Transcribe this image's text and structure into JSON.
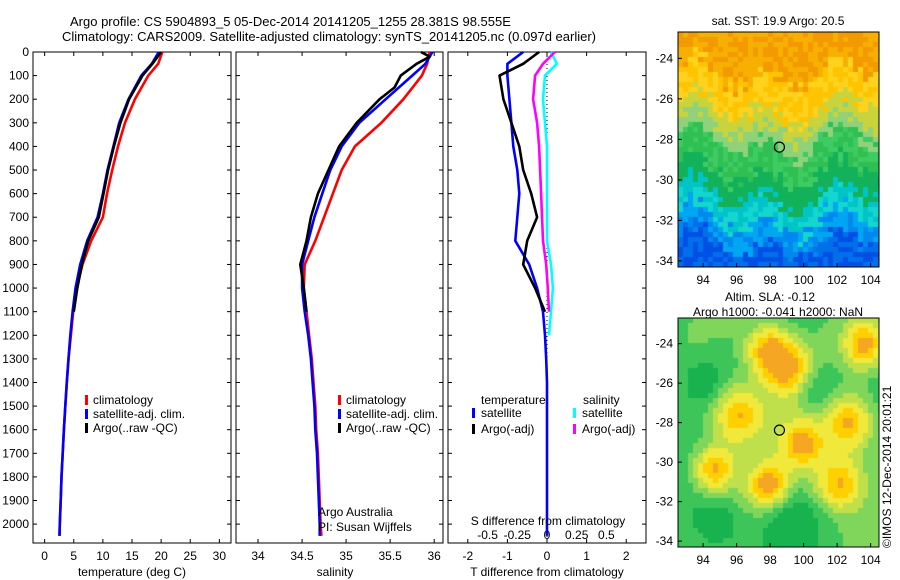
{
  "title": {
    "line1": "Argo profile: CS 5904893_5 05-Dec-2014 20141205_1255 28.381S 98.555E",
    "line2": "Climatology: CARS2009. Satellite-adjusted climatology: synTS_20141205.nc (0.097d earlier)"
  },
  "colors": {
    "climatology": "#ff0000",
    "satellite": "#0000ff",
    "argo": "#000000",
    "salinity_satellite": "#00ffff",
    "salinity_argo": "#ff00ff"
  },
  "credit": "©IMOS 12-Dec-2014 20:01:21",
  "chart_data": [
    {
      "type": "line",
      "id": "temperature",
      "xlabel": "temperature (deg C)",
      "xlim": [
        -2,
        32
      ],
      "ylim": [
        2080,
        0
      ],
      "y_reversed": true,
      "xticks": [
        0,
        5,
        10,
        15,
        20,
        25,
        30
      ],
      "yticks": [
        0,
        100,
        200,
        300,
        400,
        500,
        600,
        700,
        800,
        900,
        1000,
        1100,
        1200,
        1300,
        1400,
        1500,
        1600,
        1700,
        1800,
        1900,
        2000
      ],
      "legend": {
        "position": "lower-center",
        "labels": [
          "climatology",
          "satellite-adj. clim.",
          "Argo(..raw -QC)"
        ]
      },
      "series": [
        {
          "name": "climatology",
          "color": "#ff0000",
          "points": [
            [
              20.2,
              0
            ],
            [
              19.5,
              50
            ],
            [
              17.8,
              100
            ],
            [
              15.5,
              200
            ],
            [
              13.8,
              300
            ],
            [
              12.6,
              400
            ],
            [
              11.6,
              500
            ],
            [
              10.7,
              600
            ],
            [
              10.0,
              700
            ],
            [
              8.0,
              800
            ],
            [
              6.5,
              900
            ],
            [
              5.5,
              1000
            ],
            [
              4.9,
              1100
            ],
            [
              4.5,
              1200
            ],
            [
              4.1,
              1300
            ],
            [
              3.8,
              1400
            ],
            [
              3.55,
              1500
            ],
            [
              3.3,
              1600
            ],
            [
              3.1,
              1700
            ],
            [
              2.9,
              1800
            ],
            [
              2.75,
              1900
            ],
            [
              2.6,
              2000
            ],
            [
              2.55,
              2050
            ]
          ]
        },
        {
          "name": "satellite-adj. clim.",
          "color": "#0000ff",
          "points": [
            [
              19.6,
              0
            ],
            [
              18.4,
              50
            ],
            [
              16.6,
              100
            ],
            [
              14.4,
              200
            ],
            [
              12.8,
              300
            ],
            [
              11.8,
              400
            ],
            [
              10.8,
              500
            ],
            [
              10.0,
              600
            ],
            [
              9.1,
              700
            ],
            [
              7.3,
              800
            ],
            [
              6.1,
              900
            ],
            [
              5.3,
              1000
            ],
            [
              4.8,
              1100
            ],
            [
              4.4,
              1200
            ],
            [
              4.1,
              1300
            ],
            [
              3.8,
              1400
            ],
            [
              3.55,
              1500
            ],
            [
              3.3,
              1600
            ],
            [
              3.1,
              1700
            ],
            [
              2.9,
              1800
            ],
            [
              2.75,
              1900
            ],
            [
              2.6,
              2000
            ],
            [
              2.55,
              2050
            ]
          ]
        },
        {
          "name": "Argo(..raw -QC)",
          "color": "#000000",
          "points": [
            [
              20.0,
              0
            ],
            [
              18.5,
              50
            ],
            [
              16.8,
              100
            ],
            [
              14.5,
              200
            ],
            [
              13.0,
              300
            ],
            [
              11.9,
              400
            ],
            [
              10.9,
              500
            ],
            [
              10.1,
              600
            ],
            [
              9.3,
              700
            ],
            [
              7.5,
              800
            ],
            [
              6.4,
              900
            ],
            [
              5.6,
              1000
            ],
            [
              5.0,
              1100
            ]
          ]
        }
      ]
    },
    {
      "type": "line",
      "id": "salinity",
      "xlabel": "salinity",
      "xlim": [
        33.75,
        36.1
      ],
      "ylim": [
        2080,
        0
      ],
      "y_reversed": true,
      "xticks": [
        34,
        34.5,
        35,
        35.5,
        36
      ],
      "legend": {
        "position": "lower-center",
        "labels": [
          "climatology",
          "satellite-adj. clim.",
          "Argo(..raw -QC)"
        ]
      },
      "annotation": [
        "Argo Australia",
        "PI: Susan Wijffels"
      ],
      "series": [
        {
          "name": "climatology",
          "color": "#ff0000",
          "points": [
            [
              35.95,
              0
            ],
            [
              35.92,
              50
            ],
            [
              35.86,
              100
            ],
            [
              35.65,
              200
            ],
            [
              35.4,
              300
            ],
            [
              35.1,
              400
            ],
            [
              34.95,
              500
            ],
            [
              34.85,
              600
            ],
            [
              34.75,
              700
            ],
            [
              34.65,
              800
            ],
            [
              34.53,
              900
            ],
            [
              34.52,
              1000
            ],
            [
              34.55,
              1100
            ],
            [
              34.58,
              1200
            ],
            [
              34.61,
              1300
            ],
            [
              34.63,
              1400
            ],
            [
              34.65,
              1500
            ],
            [
              34.66,
              1600
            ],
            [
              34.68,
              1700
            ],
            [
              34.69,
              1800
            ],
            [
              34.7,
              1900
            ],
            [
              34.71,
              2000
            ],
            [
              34.72,
              2050
            ]
          ]
        },
        {
          "name": "satellite-adj. clim.",
          "color": "#0000ff",
          "points": [
            [
              35.98,
              0
            ],
            [
              35.9,
              50
            ],
            [
              35.75,
              100
            ],
            [
              35.45,
              200
            ],
            [
              35.15,
              300
            ],
            [
              34.95,
              400
            ],
            [
              34.82,
              500
            ],
            [
              34.73,
              600
            ],
            [
              34.64,
              700
            ],
            [
              34.57,
              800
            ],
            [
              34.5,
              900
            ],
            [
              34.5,
              1000
            ],
            [
              34.53,
              1100
            ],
            [
              34.57,
              1200
            ],
            [
              34.6,
              1300
            ],
            [
              34.62,
              1400
            ],
            [
              34.64,
              1500
            ],
            [
              34.65,
              1600
            ],
            [
              34.67,
              1700
            ],
            [
              34.68,
              1800
            ],
            [
              34.69,
              1900
            ],
            [
              34.7,
              2000
            ],
            [
              34.7,
              2050
            ]
          ]
        },
        {
          "name": "Argo(..raw -QC)",
          "color": "#000000",
          "points": [
            [
              35.85,
              0
            ],
            [
              35.95,
              20
            ],
            [
              35.8,
              50
            ],
            [
              35.62,
              100
            ],
            [
              35.55,
              150
            ],
            [
              35.38,
              200
            ],
            [
              35.12,
              300
            ],
            [
              34.92,
              400
            ],
            [
              34.8,
              500
            ],
            [
              34.68,
              600
            ],
            [
              34.6,
              700
            ],
            [
              34.55,
              800
            ],
            [
              34.48,
              900
            ],
            [
              34.52,
              1000
            ],
            [
              34.55,
              1100
            ]
          ]
        }
      ]
    },
    {
      "type": "line",
      "id": "difference",
      "xlabel": "T difference from climatology",
      "xlabel_top": "S difference from climatology",
      "xlim": [
        -2.5,
        2.5
      ],
      "ylim": [
        2080,
        0
      ],
      "y_reversed": true,
      "xticks": [
        -2,
        -1,
        0,
        1,
        2
      ],
      "s_ticks": [
        {
          "x": -1.5,
          "label": "-0.5"
        },
        {
          "x": -0.75,
          "label": "-0.25"
        },
        {
          "x": 0,
          "label": "0"
        },
        {
          "x": 0.75,
          "label": "0.25"
        },
        {
          "x": 1.5,
          "label": "0.5"
        }
      ],
      "legend": {
        "position": "lower-center",
        "temperature_header": "temperature",
        "salinity_header": "salinity",
        "labels": [
          "satellite",
          "Argo(-adj)",
          "satellite",
          "Argo(-adj)"
        ]
      },
      "series": [
        {
          "name": "temperature satellite",
          "color": "#0000ff",
          "points": [
            [
              -0.6,
              0
            ],
            [
              -1.0,
              50
            ],
            [
              -1.0,
              100
            ],
            [
              -0.95,
              200
            ],
            [
              -0.9,
              300
            ],
            [
              -0.85,
              400
            ],
            [
              -0.75,
              500
            ],
            [
              -0.7,
              600
            ],
            [
              -0.75,
              700
            ],
            [
              -0.8,
              800
            ],
            [
              -0.45,
              900
            ],
            [
              -0.25,
              1000
            ],
            [
              -0.1,
              1100
            ],
            [
              -0.05,
              1200
            ],
            [
              -0.02,
              1300
            ],
            [
              0,
              1400
            ],
            [
              0,
              1600
            ],
            [
              0,
              2050
            ]
          ]
        },
        {
          "name": "temperature Argo(-adj)",
          "color": "#000000",
          "points": [
            [
              -0.2,
              0
            ],
            [
              -0.6,
              50
            ],
            [
              -1.2,
              100
            ],
            [
              -1.1,
              200
            ],
            [
              -0.9,
              300
            ],
            [
              -0.7,
              400
            ],
            [
              -0.6,
              500
            ],
            [
              -0.4,
              600
            ],
            [
              -0.25,
              700
            ],
            [
              -0.5,
              800
            ],
            [
              -0.6,
              900
            ],
            [
              -0.3,
              1000
            ],
            [
              -0.05,
              1100
            ]
          ]
        },
        {
          "name": "salinity satellite",
          "color": "#00ffff",
          "points": [
            [
              0.1,
              0
            ],
            [
              0.25,
              50
            ],
            [
              -0.05,
              100
            ],
            [
              -0.1,
              200
            ],
            [
              -0.05,
              300
            ],
            [
              0,
              400
            ],
            [
              0,
              600
            ],
            [
              0,
              800
            ],
            [
              0.1,
              900
            ],
            [
              0.15,
              1000
            ],
            [
              0.1,
              1100
            ],
            [
              0.05,
              1200
            ]
          ]
        },
        {
          "name": "salinity Argo(-adj)",
          "color": "#ff00ff",
          "points": [
            [
              0.2,
              0
            ],
            [
              -0.1,
              50
            ],
            [
              -0.3,
              100
            ],
            [
              -0.35,
              200
            ],
            [
              -0.25,
              300
            ],
            [
              -0.2,
              400
            ],
            [
              -0.15,
              600
            ],
            [
              -0.1,
              800
            ],
            [
              -0.02,
              900
            ],
            [
              0.02,
              1000
            ],
            [
              0.05,
              1100
            ]
          ]
        }
      ]
    },
    {
      "type": "heatmap",
      "id": "sst-map",
      "title": "sat. SST: 19.9  Argo: 20.5",
      "xlim": [
        92.5,
        104.5
      ],
      "ylim": [
        -34.3,
        -22.7
      ],
      "xticks": [
        94,
        96,
        98,
        100,
        102,
        104
      ],
      "yticks": [
        -24,
        -26,
        -28,
        -30,
        -32,
        -34
      ],
      "marker": {
        "lon": 98.555,
        "lat": -28.381
      }
    },
    {
      "type": "heatmap",
      "id": "sla-map",
      "title": "Altim. SLA: -0.12",
      "subtitle": "Argo h1000: -0.041  h2000: NaN",
      "xlim": [
        92.5,
        104.5
      ],
      "ylim": [
        -34.3,
        -22.7
      ],
      "xticks": [
        94,
        96,
        98,
        100,
        102,
        104
      ],
      "yticks": [
        -24,
        -26,
        -28,
        -30,
        -32,
        -34
      ],
      "marker": {
        "lon": 98.555,
        "lat": -28.381
      }
    }
  ]
}
